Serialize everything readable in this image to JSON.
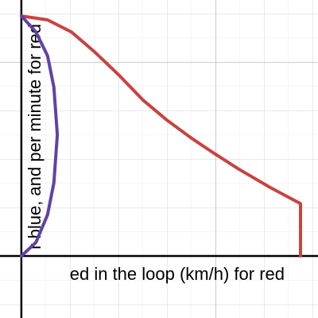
{
  "chart_data": {
    "type": "line",
    "x_label": "ed in the loop (km/h) for red",
    "y_label": "r blue, and per minute for red",
    "xlim": [
      -0.44,
      6.11
    ],
    "ylim": [
      -1.28,
      5.28
    ],
    "series": [
      {
        "color": "#c74440",
        "x": [
          0,
          0.54,
          1.03,
          1.52,
          2.02,
          2.51,
          3,
          3.49,
          3.92,
          4.48,
          5.13,
          5.75,
          5.75
        ],
        "values": [
          4.95,
          4.87,
          4.62,
          4.2,
          3.72,
          3.21,
          2.8,
          2.44,
          2.15,
          1.79,
          1.41,
          1.08,
          0
        ]
      },
      {
        "color": "#6042a6",
        "x": [
          0,
          0.3,
          0.54,
          0.67,
          0.74,
          0.67,
          0.54,
          0.3,
          0
        ],
        "values": [
          4.95,
          4.62,
          4.13,
          3.48,
          2.5,
          1.51,
          0.85,
          0.28,
          0
        ]
      }
    ]
  }
}
